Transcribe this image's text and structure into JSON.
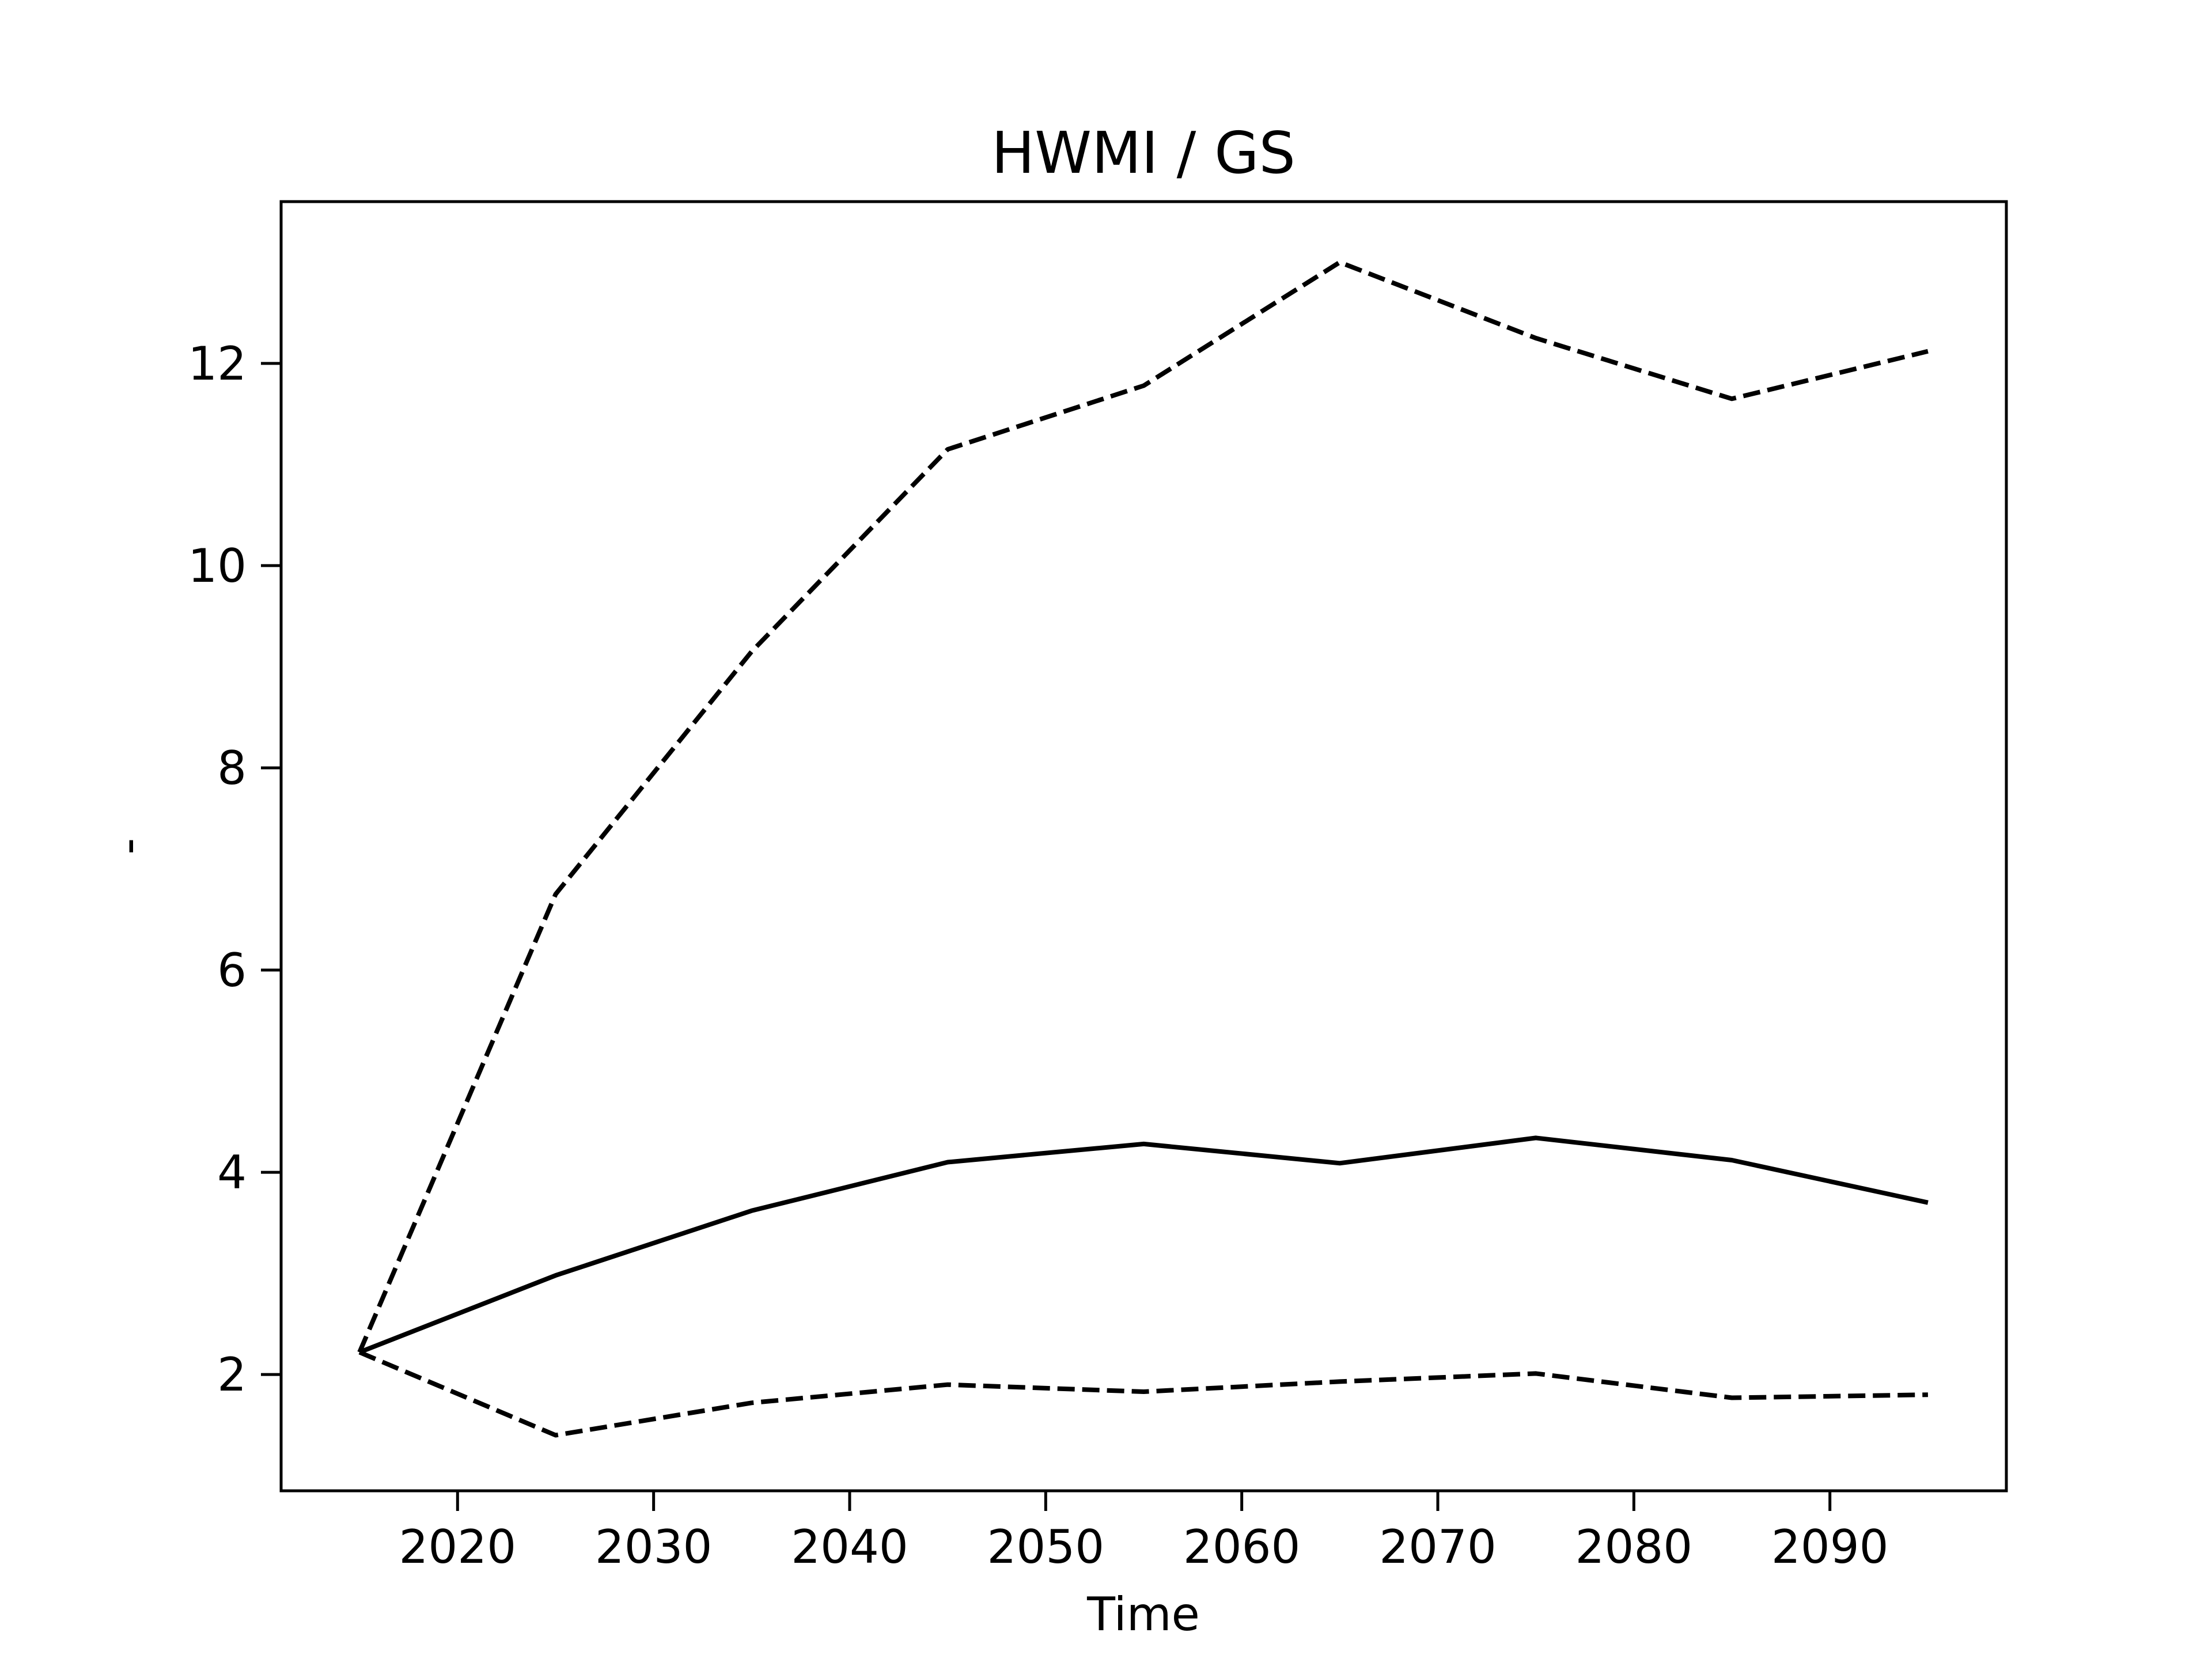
{
  "chart_data": {
    "type": "line",
    "title": "HWMI / GS",
    "xlabel": "Time",
    "ylabel": "-",
    "xlim": [
      2011,
      2099
    ],
    "ylim": [
      0.85,
      13.6
    ],
    "xticks": [
      2020,
      2030,
      2040,
      2050,
      2060,
      2070,
      2080,
      2090
    ],
    "yticks": [
      2,
      4,
      6,
      8,
      10,
      12
    ],
    "grid": false,
    "legend": "none",
    "colors": {
      "line": "#000000",
      "axes": "#000000",
      "background": "#ffffff"
    },
    "x": [
      2015,
      2025,
      2035,
      2045,
      2055,
      2065,
      2075,
      2085,
      2095
    ],
    "series": [
      {
        "style": "solid",
        "values": [
          2.22,
          2.98,
          3.62,
          4.1,
          4.28,
          4.09,
          4.34,
          4.12,
          3.7
        ]
      },
      {
        "style": "dashed",
        "values": [
          2.22,
          6.75,
          9.15,
          11.15,
          11.78,
          13.0,
          12.25,
          11.65,
          12.12
        ]
      },
      {
        "style": "dashed",
        "values": [
          2.22,
          1.4,
          1.72,
          1.9,
          1.83,
          1.93,
          2.01,
          1.77,
          1.8
        ]
      }
    ]
  }
}
